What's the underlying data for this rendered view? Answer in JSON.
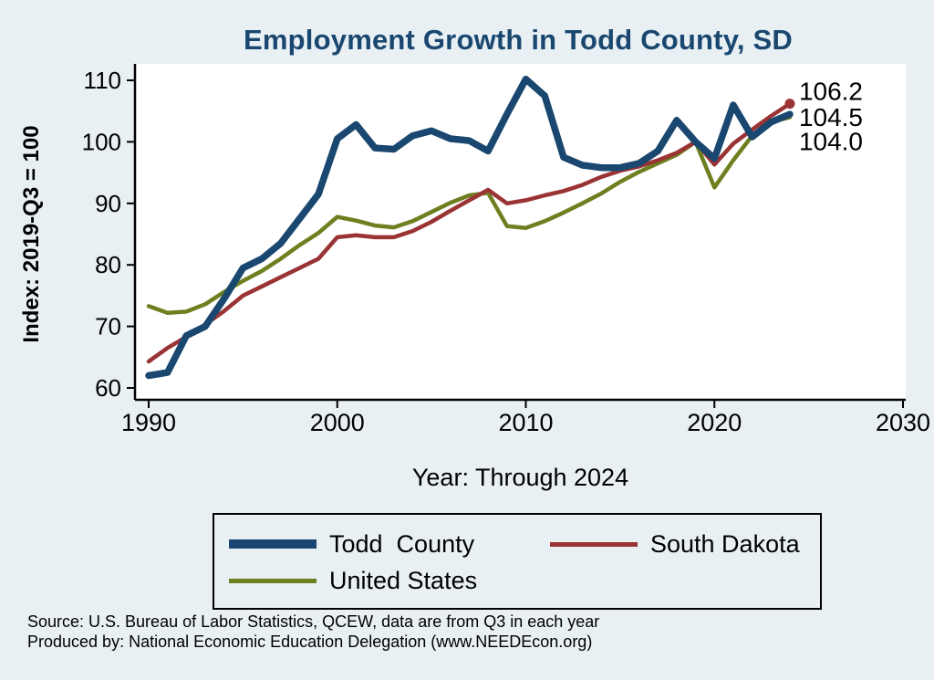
{
  "page": {
    "background": "#e8f0f4",
    "title": "Employment Growth in Todd County, SD",
    "title_color": "#1a476f",
    "xaxis_label": "Year: Through 2024",
    "yaxis_label": "Index: 2019-Q3 = 100",
    "source_line1": "Source: U.S. Bureau of Labor Statistics, QCEW, data are from Q3 in each year",
    "source_line2": "Produced by: National Economic Education Delegation (www.NEEDEcon.org)"
  },
  "chart_data": {
    "type": "line",
    "title": "Employment Growth in Todd County, SD",
    "xlabel": "Year: Through 2024",
    "ylabel": "Index: 2019-Q3 = 100",
    "xlim": [
      1990,
      2030
    ],
    "ylim": [
      60,
      110
    ],
    "xticks": [
      1990,
      2000,
      2010,
      2020,
      2030
    ],
    "yticks": [
      60,
      70,
      80,
      90,
      100,
      110
    ],
    "grid": false,
    "legend_position": "bottom",
    "x": [
      1990,
      1991,
      1992,
      1993,
      1994,
      1995,
      1996,
      1997,
      1998,
      1999,
      2000,
      2001,
      2002,
      2003,
      2004,
      2005,
      2006,
      2007,
      2008,
      2009,
      2010,
      2011,
      2012,
      2013,
      2014,
      2015,
      2016,
      2017,
      2018,
      2019,
      2020,
      2021,
      2022,
      2023,
      2024
    ],
    "series": [
      {
        "name": "Todd  County",
        "color": "#1a476f",
        "line_width": 7.5,
        "end_label": "104.5",
        "end_dot": false,
        "values": [
          62,
          62.5,
          68.5,
          70,
          74.5,
          79.5,
          81,
          83.5,
          87.5,
          91.5,
          100.5,
          102.8,
          99,
          98.8,
          101,
          101.8,
          100.5,
          100.2,
          98.5,
          104.5,
          110.2,
          107.5,
          97.5,
          96.2,
          95.8,
          95.8,
          96.5,
          98.5,
          103.5,
          100,
          97.3,
          106,
          100.8,
          103.2,
          104.5
        ]
      },
      {
        "name": "South Dakota",
        "color": "#9a3334",
        "line_width": 4.5,
        "end_label": "106.2",
        "end_dot": true,
        "values": [
          64.3,
          66.5,
          68.3,
          70.3,
          72.5,
          75,
          76.5,
          78,
          79.5,
          81,
          84.5,
          84.8,
          84.5,
          84.5,
          85.5,
          87,
          88.8,
          90.5,
          92.2,
          90,
          90.5,
          91.3,
          92,
          93,
          94.3,
          95.3,
          96,
          97,
          98.2,
          100,
          96.3,
          99.7,
          102,
          104.2,
          106.2
        ]
      },
      {
        "name": "United States",
        "color": "#6d8020",
        "line_width": 4.5,
        "end_label": "104.0",
        "end_dot": false,
        "values": [
          73.3,
          72.2,
          72.4,
          73.6,
          75.6,
          77.4,
          79,
          81,
          83.2,
          85.2,
          87.8,
          87.2,
          86.4,
          86.1,
          87.1,
          88.6,
          90.1,
          91.3,
          91.7,
          86.3,
          86,
          87.1,
          88.5,
          90,
          91.6,
          93.5,
          95.1,
          96.5,
          97.9,
          100,
          92.6,
          97,
          101,
          103.2,
          104
        ]
      }
    ]
  }
}
